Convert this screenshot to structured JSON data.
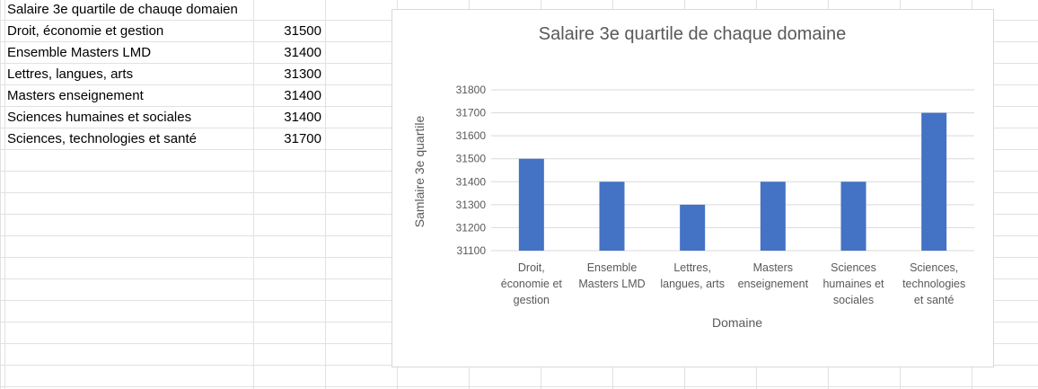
{
  "sheet": {
    "header": "Salaire 3e quartile de chauqe domaien",
    "rows": [
      {
        "label": "Droit, économie et gestion",
        "value": "31500"
      },
      {
        "label": "Ensemble Masters LMD",
        "value": "31400"
      },
      {
        "label": "Lettres, langues, arts",
        "value": "31300"
      },
      {
        "label": "Masters enseignement",
        "value": "31400"
      },
      {
        "label": "Sciences humaines et sociales",
        "value": "31400"
      },
      {
        "label": "Sciences, technologies et santé",
        "value": "31700"
      }
    ]
  },
  "chart_data": {
    "type": "bar",
    "title": "Salaire 3e quartile de chaque domaine",
    "xlabel": "Domaine",
    "ylabel": "Samlaire 3e quartile",
    "categories": [
      [
        "Droit,",
        "économie et",
        "gestion"
      ],
      [
        "Ensemble",
        "Masters LMD"
      ],
      [
        "Lettres,",
        "langues, arts"
      ],
      [
        "Masters",
        "enseignement"
      ],
      [
        "Sciences",
        "humaines et",
        "sociales"
      ],
      [
        "Sciences,",
        "technologies",
        "et santé"
      ]
    ],
    "values": [
      31500,
      31400,
      31300,
      31400,
      31400,
      31700
    ],
    "ylim": [
      31100,
      31800
    ],
    "yticks": [
      "31100",
      "31200",
      "31300",
      "31400",
      "31500",
      "31600",
      "31700",
      "31800"
    ],
    "grid": true,
    "bar_color": "#4472c4",
    "grid_color": "#d9d9d9"
  }
}
